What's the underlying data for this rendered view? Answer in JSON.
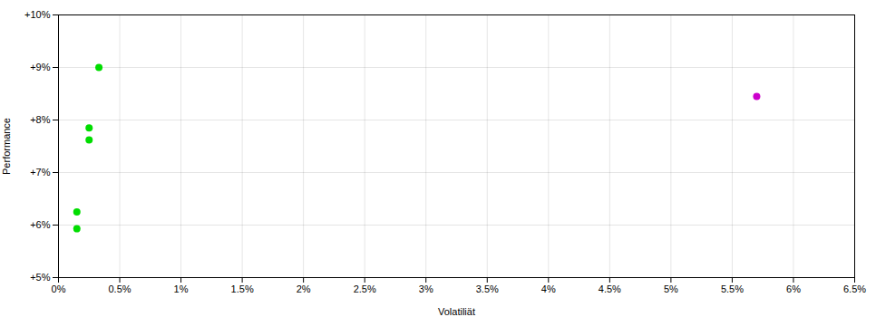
{
  "chart_data": {
    "type": "scatter",
    "xlabel": "Volatiliät",
    "ylabel": "Performance",
    "xlim": [
      0.0,
      0.065
    ],
    "ylim": [
      0.05,
      0.1
    ],
    "xticks": [
      {
        "value": 0.0,
        "label": "0%"
      },
      {
        "value": 0.005,
        "label": "0.5%"
      },
      {
        "value": 0.01,
        "label": "1%"
      },
      {
        "value": 0.015,
        "label": "1.5%"
      },
      {
        "value": 0.02,
        "label": "2%"
      },
      {
        "value": 0.025,
        "label": "2.5%"
      },
      {
        "value": 0.03,
        "label": "3%"
      },
      {
        "value": 0.035,
        "label": "3.5%"
      },
      {
        "value": 0.04,
        "label": "4%"
      },
      {
        "value": 0.045,
        "label": "4.5%"
      },
      {
        "value": 0.05,
        "label": "5%"
      },
      {
        "value": 0.055,
        "label": "5.5%"
      },
      {
        "value": 0.06,
        "label": "6%"
      },
      {
        "value": 0.065,
        "label": "6.5%"
      }
    ],
    "yticks": [
      {
        "value": 0.05,
        "label": "+5%"
      },
      {
        "value": 0.06,
        "label": "+6%"
      },
      {
        "value": 0.07,
        "label": "+7%"
      },
      {
        "value": 0.08,
        "label": "+8%"
      },
      {
        "value": 0.09,
        "label": "+9%"
      },
      {
        "value": 0.1,
        "label": "+10%"
      }
    ],
    "grid": true,
    "marker": "circle",
    "series": [
      {
        "color": "#00dd00",
        "x": [
          0.0033,
          0.0025,
          0.0025,
          0.0015,
          0.0015
        ],
        "values": [
          0.09,
          0.0785,
          0.0762,
          0.0625,
          0.0593
        ]
      },
      {
        "color": "#cc00cc",
        "x": [
          0.057
        ],
        "values": [
          0.0845
        ]
      }
    ]
  }
}
